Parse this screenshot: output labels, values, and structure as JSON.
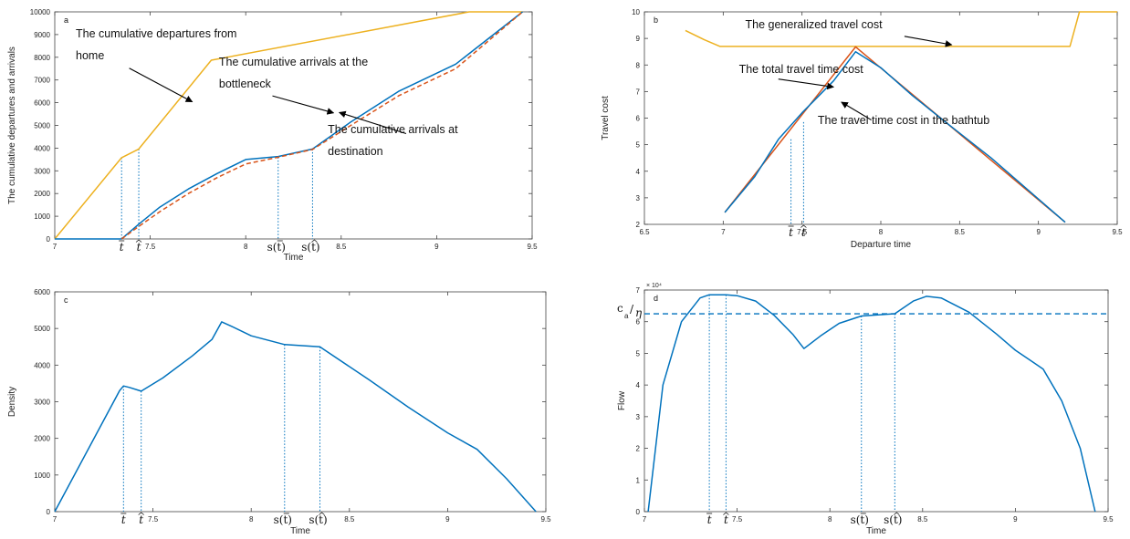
{
  "colors": {
    "blue": "#0072BD",
    "red": "#D95319",
    "orange": "#EDB120",
    "axis": "#444444"
  },
  "chart_data": [
    {
      "id": "a",
      "type": "line",
      "panel_label": "a",
      "xlabel": "Time",
      "ylabel": "The cumulative departures and arrivals",
      "xlim": [
        7,
        9.5
      ],
      "ylim": [
        0,
        10000
      ],
      "xticks": [
        {
          "v": 7,
          "label": "7"
        },
        {
          "v": 7.5,
          "label": "7.5"
        },
        {
          "v": 8,
          "label": "8"
        },
        {
          "v": 8.5,
          "label": "8.5"
        },
        {
          "v": 9,
          "label": "9"
        },
        {
          "v": 9.5,
          "label": "9.5"
        }
      ],
      "yticks": [
        {
          "v": 0,
          "label": "0"
        },
        {
          "v": 1000,
          "label": "1000"
        },
        {
          "v": 2000,
          "label": "2000"
        },
        {
          "v": 3000,
          "label": "3000"
        },
        {
          "v": 4000,
          "label": "4000"
        },
        {
          "v": 5000,
          "label": "5000"
        },
        {
          "v": 6000,
          "label": "6000"
        },
        {
          "v": 7000,
          "label": "7000"
        },
        {
          "v": 8000,
          "label": "8000"
        },
        {
          "v": 9000,
          "label": "9000"
        },
        {
          "v": 10000,
          "label": "10000"
        }
      ],
      "series": [
        {
          "color": "orange",
          "style": "solid",
          "x": [
            7.0,
            7.35,
            7.44,
            7.82,
            9.17,
            9.45
          ],
          "y": [
            0,
            3580,
            3960,
            7870,
            10000,
            10000
          ]
        },
        {
          "color": "blue",
          "style": "solid",
          "x": [
            7.0,
            7.35,
            7.44,
            7.55,
            7.7,
            7.85,
            8.0,
            8.17,
            8.35,
            8.55,
            8.8,
            9.1,
            9.45
          ],
          "y": [
            0,
            0,
            650,
            1400,
            2200,
            2880,
            3500,
            3630,
            3960,
            5150,
            6500,
            7700,
            10000
          ]
        },
        {
          "color": "red",
          "style": "dashed",
          "x": [
            7.35,
            7.44,
            7.55,
            7.7,
            7.85,
            8.0,
            8.17,
            8.35,
            8.55,
            8.8,
            9.1,
            9.45
          ],
          "y": [
            0,
            550,
            1200,
            2000,
            2700,
            3300,
            3600,
            3940,
            5000,
            6300,
            7500,
            10000
          ]
        }
      ],
      "vlines": [
        {
          "x": 7.35,
          "y": 3580,
          "label": "t",
          "kind": "bar"
        },
        {
          "x": 7.44,
          "y": 3960,
          "label": "t",
          "kind": "hat"
        },
        {
          "x": 8.17,
          "y": 3600,
          "label": "s(t)",
          "kind": "bar"
        },
        {
          "x": 8.35,
          "y": 3960,
          "label": "s(t)",
          "kind": "hat"
        }
      ],
      "annotations": [
        {
          "lines": [
            "The cumulative departures from",
            "home"
          ],
          "tx": 7.11,
          "ty": 8880,
          "arrow": [
            7.39,
            7520,
            7.72,
            6040
          ]
        },
        {
          "lines": [
            "The cumulative arrivals at the",
            "bottleneck"
          ],
          "tx": 7.86,
          "ty": 7630,
          "arrow": [
            8.14,
            6300,
            8.46,
            5550
          ]
        },
        {
          "lines": [
            "The cumulative arrivals at",
            "destination"
          ],
          "tx": 8.43,
          "ty": 4660,
          "arrow": [
            8.84,
            4640,
            8.49,
            5570
          ]
        }
      ]
    },
    {
      "id": "b",
      "type": "line",
      "panel_label": "b",
      "xlabel": "Departure time",
      "ylabel": "Travel cost",
      "xlim": [
        6.5,
        9.5
      ],
      "ylim": [
        2,
        10
      ],
      "xticks": [
        {
          "v": 6.5,
          "label": "6.5"
        },
        {
          "v": 7,
          "label": "7"
        },
        {
          "v": 7.5,
          "label": "7.5"
        },
        {
          "v": 8,
          "label": "8"
        },
        {
          "v": 8.5,
          "label": "8.5"
        },
        {
          "v": 9,
          "label": "9"
        },
        {
          "v": 9.5,
          "label": "9.5"
        }
      ],
      "yticks": [
        {
          "v": 2,
          "label": "2"
        },
        {
          "v": 3,
          "label": "3"
        },
        {
          "v": 4,
          "label": "4"
        },
        {
          "v": 5,
          "label": "5"
        },
        {
          "v": 6,
          "label": "6"
        },
        {
          "v": 7,
          "label": "7"
        },
        {
          "v": 8,
          "label": "8"
        },
        {
          "v": 9,
          "label": "9"
        },
        {
          "v": 10,
          "label": "10"
        }
      ],
      "series": [
        {
          "color": "orange",
          "style": "solid",
          "x": [
            6.76,
            6.88,
            6.98,
            9.02,
            9.2,
            9.26,
            9.5
          ],
          "y": [
            9.3,
            8.95,
            8.7,
            8.7,
            8.7,
            10.0,
            10.0
          ]
        },
        {
          "color": "red",
          "style": "solid",
          "x": [
            7.01,
            7.84,
            9.17
          ],
          "y": [
            2.45,
            8.68,
            2.08
          ]
        },
        {
          "color": "blue",
          "style": "solid",
          "x": [
            7.01,
            7.2,
            7.35,
            7.5,
            7.7,
            7.84,
            8.0,
            8.2,
            8.4,
            8.7,
            9.17
          ],
          "y": [
            2.45,
            3.8,
            5.2,
            6.2,
            7.4,
            8.5,
            7.9,
            6.85,
            5.9,
            4.5,
            2.08
          ]
        }
      ],
      "vlines": [
        {
          "x": 7.43,
          "y": 5.2,
          "label": "t",
          "kind": "bar"
        },
        {
          "x": 7.51,
          "y": 5.85,
          "label": "t",
          "kind": "hat"
        }
      ],
      "annotations": [
        {
          "lines": [
            "The generalized travel cost"
          ],
          "tx": 7.14,
          "ty": 9.38,
          "arrow": [
            8.15,
            9.08,
            8.45,
            8.76
          ]
        },
        {
          "lines": [
            "The total travel time cost"
          ],
          "tx": 7.1,
          "ty": 7.7,
          "arrow": [
            7.35,
            7.47,
            7.7,
            7.17
          ]
        },
        {
          "lines": [
            "The travel time cost in the bathtub"
          ],
          "tx": 7.6,
          "ty": 5.78,
          "arrow": [
            7.94,
            5.93,
            7.75,
            6.6
          ]
        }
      ]
    },
    {
      "id": "c",
      "type": "line",
      "panel_label": "c",
      "xlabel": "Time",
      "ylabel": "Density",
      "xlim": [
        7,
        9.5
      ],
      "ylim": [
        0,
        6000
      ],
      "xticks": [
        {
          "v": 7,
          "label": "7"
        },
        {
          "v": 7.5,
          "label": "7.5"
        },
        {
          "v": 8,
          "label": "8"
        },
        {
          "v": 8.5,
          "label": "8.5"
        },
        {
          "v": 9,
          "label": "9"
        },
        {
          "v": 9.5,
          "label": "9.5"
        }
      ],
      "yticks": [
        {
          "v": 0,
          "label": "0"
        },
        {
          "v": 1000,
          "label": "1000"
        },
        {
          "v": 2000,
          "label": "2000"
        },
        {
          "v": 3000,
          "label": "3000"
        },
        {
          "v": 4000,
          "label": "4000"
        },
        {
          "v": 5000,
          "label": "5000"
        },
        {
          "v": 6000,
          "label": "6000"
        }
      ],
      "series": [
        {
          "color": "blue",
          "style": "solid",
          "x": [
            7.0,
            7.33,
            7.35,
            7.38,
            7.44,
            7.55,
            7.7,
            7.8,
            7.85,
            7.9,
            8.0,
            8.17,
            8.35,
            8.6,
            8.8,
            9.0,
            9.15,
            9.3,
            9.45
          ],
          "y": [
            0,
            3300,
            3430,
            3390,
            3290,
            3650,
            4250,
            4700,
            5180,
            5060,
            4800,
            4560,
            4500,
            3600,
            2850,
            2150,
            1700,
            900,
            0
          ]
        }
      ],
      "vlines": [
        {
          "x": 7.35,
          "y": 3430,
          "label": "t",
          "kind": "bar"
        },
        {
          "x": 7.44,
          "y": 3290,
          "label": "t",
          "kind": "hat"
        },
        {
          "x": 8.17,
          "y": 4560,
          "label": "s(t)",
          "kind": "bar"
        },
        {
          "x": 8.35,
          "y": 4500,
          "label": "s(t)",
          "kind": "hat"
        }
      ],
      "annotations": []
    },
    {
      "id": "d",
      "type": "line",
      "panel_label": "d",
      "xlabel": "Time",
      "ylabel": "Flow",
      "xlim": [
        7,
        9.5
      ],
      "ylim": [
        0,
        70000
      ],
      "y_exponent": "× 10⁴",
      "xticks": [
        {
          "v": 7,
          "label": "7"
        },
        {
          "v": 7.5,
          "label": "7.5"
        },
        {
          "v": 8,
          "label": "8"
        },
        {
          "v": 8.5,
          "label": "8.5"
        },
        {
          "v": 9,
          "label": "9"
        },
        {
          "v": 9.5,
          "label": "9.5"
        }
      ],
      "yticks": [
        {
          "v": 0,
          "label": "0"
        },
        {
          "v": 10000,
          "label": "1"
        },
        {
          "v": 20000,
          "label": "2"
        },
        {
          "v": 30000,
          "label": "3"
        },
        {
          "v": 40000,
          "label": "4"
        },
        {
          "v": 50000,
          "label": "5"
        },
        {
          "v": 60000,
          "label": "6"
        },
        {
          "v": 70000,
          "label": "7"
        }
      ],
      "series": [
        {
          "color": "blue",
          "style": "solid",
          "x": [
            7.02,
            7.1,
            7.2,
            7.3,
            7.35,
            7.44,
            7.5,
            7.6,
            7.7,
            7.8,
            7.86,
            7.95,
            8.05,
            8.17,
            8.35,
            8.45,
            8.52,
            8.6,
            8.75,
            8.9,
            9.0,
            9.1,
            9.15,
            9.25,
            9.35,
            9.43
          ],
          "y": [
            0,
            40000,
            60000,
            67500,
            68500,
            68500,
            68200,
            66500,
            62000,
            56000,
            51500,
            55500,
            59500,
            61800,
            62500,
            66500,
            68000,
            67500,
            63000,
            56000,
            51000,
            47000,
            45000,
            35000,
            20000,
            0
          ]
        }
      ],
      "hlines": [
        {
          "y": 62500,
          "color": "blue",
          "style": "dashed",
          "x0": 7.0,
          "x1": 9.5
        }
      ],
      "hline_label": {
        "c": "c",
        "sub": "a",
        "slash": "/",
        "eta": "η"
      },
      "vlines": [
        {
          "x": 7.35,
          "y": 68500,
          "label": "t",
          "kind": "bar"
        },
        {
          "x": 7.44,
          "y": 68500,
          "label": "t",
          "kind": "hat"
        },
        {
          "x": 8.17,
          "y": 61800,
          "label": "s(t)",
          "kind": "bar"
        },
        {
          "x": 8.35,
          "y": 62500,
          "label": "s(t)",
          "kind": "hat"
        }
      ],
      "annotations": []
    }
  ]
}
